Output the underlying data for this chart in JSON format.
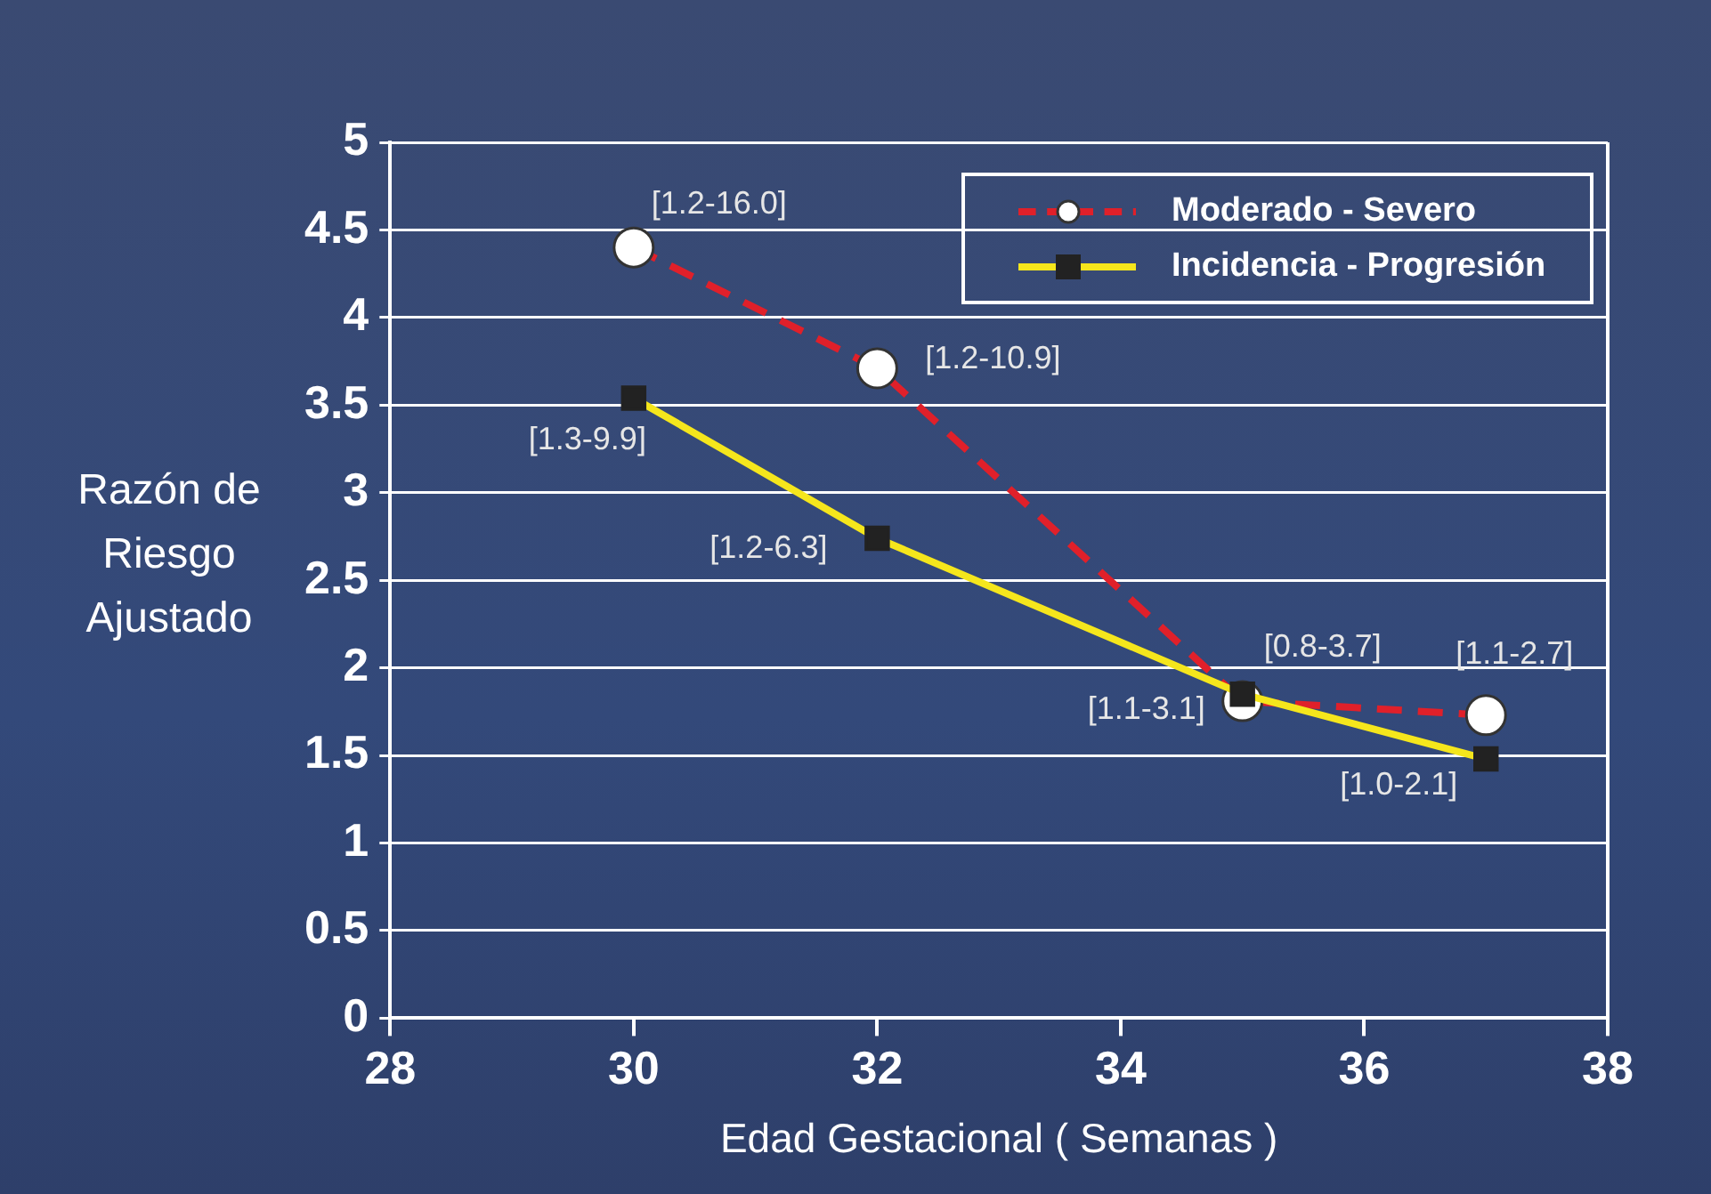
{
  "chart_data": {
    "type": "line",
    "xlabel": "Edad Gestacional ( Semanas )",
    "ylabel": "Razón de Riesgo Ajustado",
    "x": [
      30,
      32,
      35,
      37
    ],
    "series": [
      {
        "name": "Moderado -  Severo",
        "color": "#e0202a",
        "values": [
          4.4,
          3.71,
          1.81,
          1.73
        ],
        "line_style": "dashed",
        "marker": "circle"
      },
      {
        "name": "Incidencia - Progresión",
        "color": "#f5e61c",
        "values": [
          3.54,
          2.74,
          1.85,
          1.48
        ],
        "line_style": "solid",
        "marker": "square"
      }
    ],
    "xlim": [
      28,
      38
    ],
    "xticks": [
      28,
      30,
      32,
      34,
      36,
      38
    ],
    "ylim": [
      0,
      5
    ],
    "yticks": [
      0,
      0.5,
      1,
      1.5,
      2,
      2.5,
      3,
      3.5,
      4,
      4.5,
      5
    ],
    "grid": "y",
    "legend": "top right",
    "annotations": [
      {
        "text": "[1.2-16.0]",
        "x": 30,
        "y": 4.4
      },
      {
        "text": "[1.2-10.9]",
        "x": 32,
        "y": 3.71
      },
      {
        "text": "[0.8-3.7]",
        "x": 35,
        "y": 1.81
      },
      {
        "text": "[1.1-2.7]",
        "x": 37,
        "y": 1.73
      },
      {
        "text": "[1.3-9.9]",
        "x": 30,
        "y": 3.54
      },
      {
        "text": "[1.2-6.3]",
        "x": 32,
        "y": 2.74
      },
      {
        "text": "[1.1-3.1]",
        "x": 35,
        "y": 1.85
      },
      {
        "text": "[1.0-2.1]",
        "x": 37,
        "y": 1.48
      }
    ]
  }
}
